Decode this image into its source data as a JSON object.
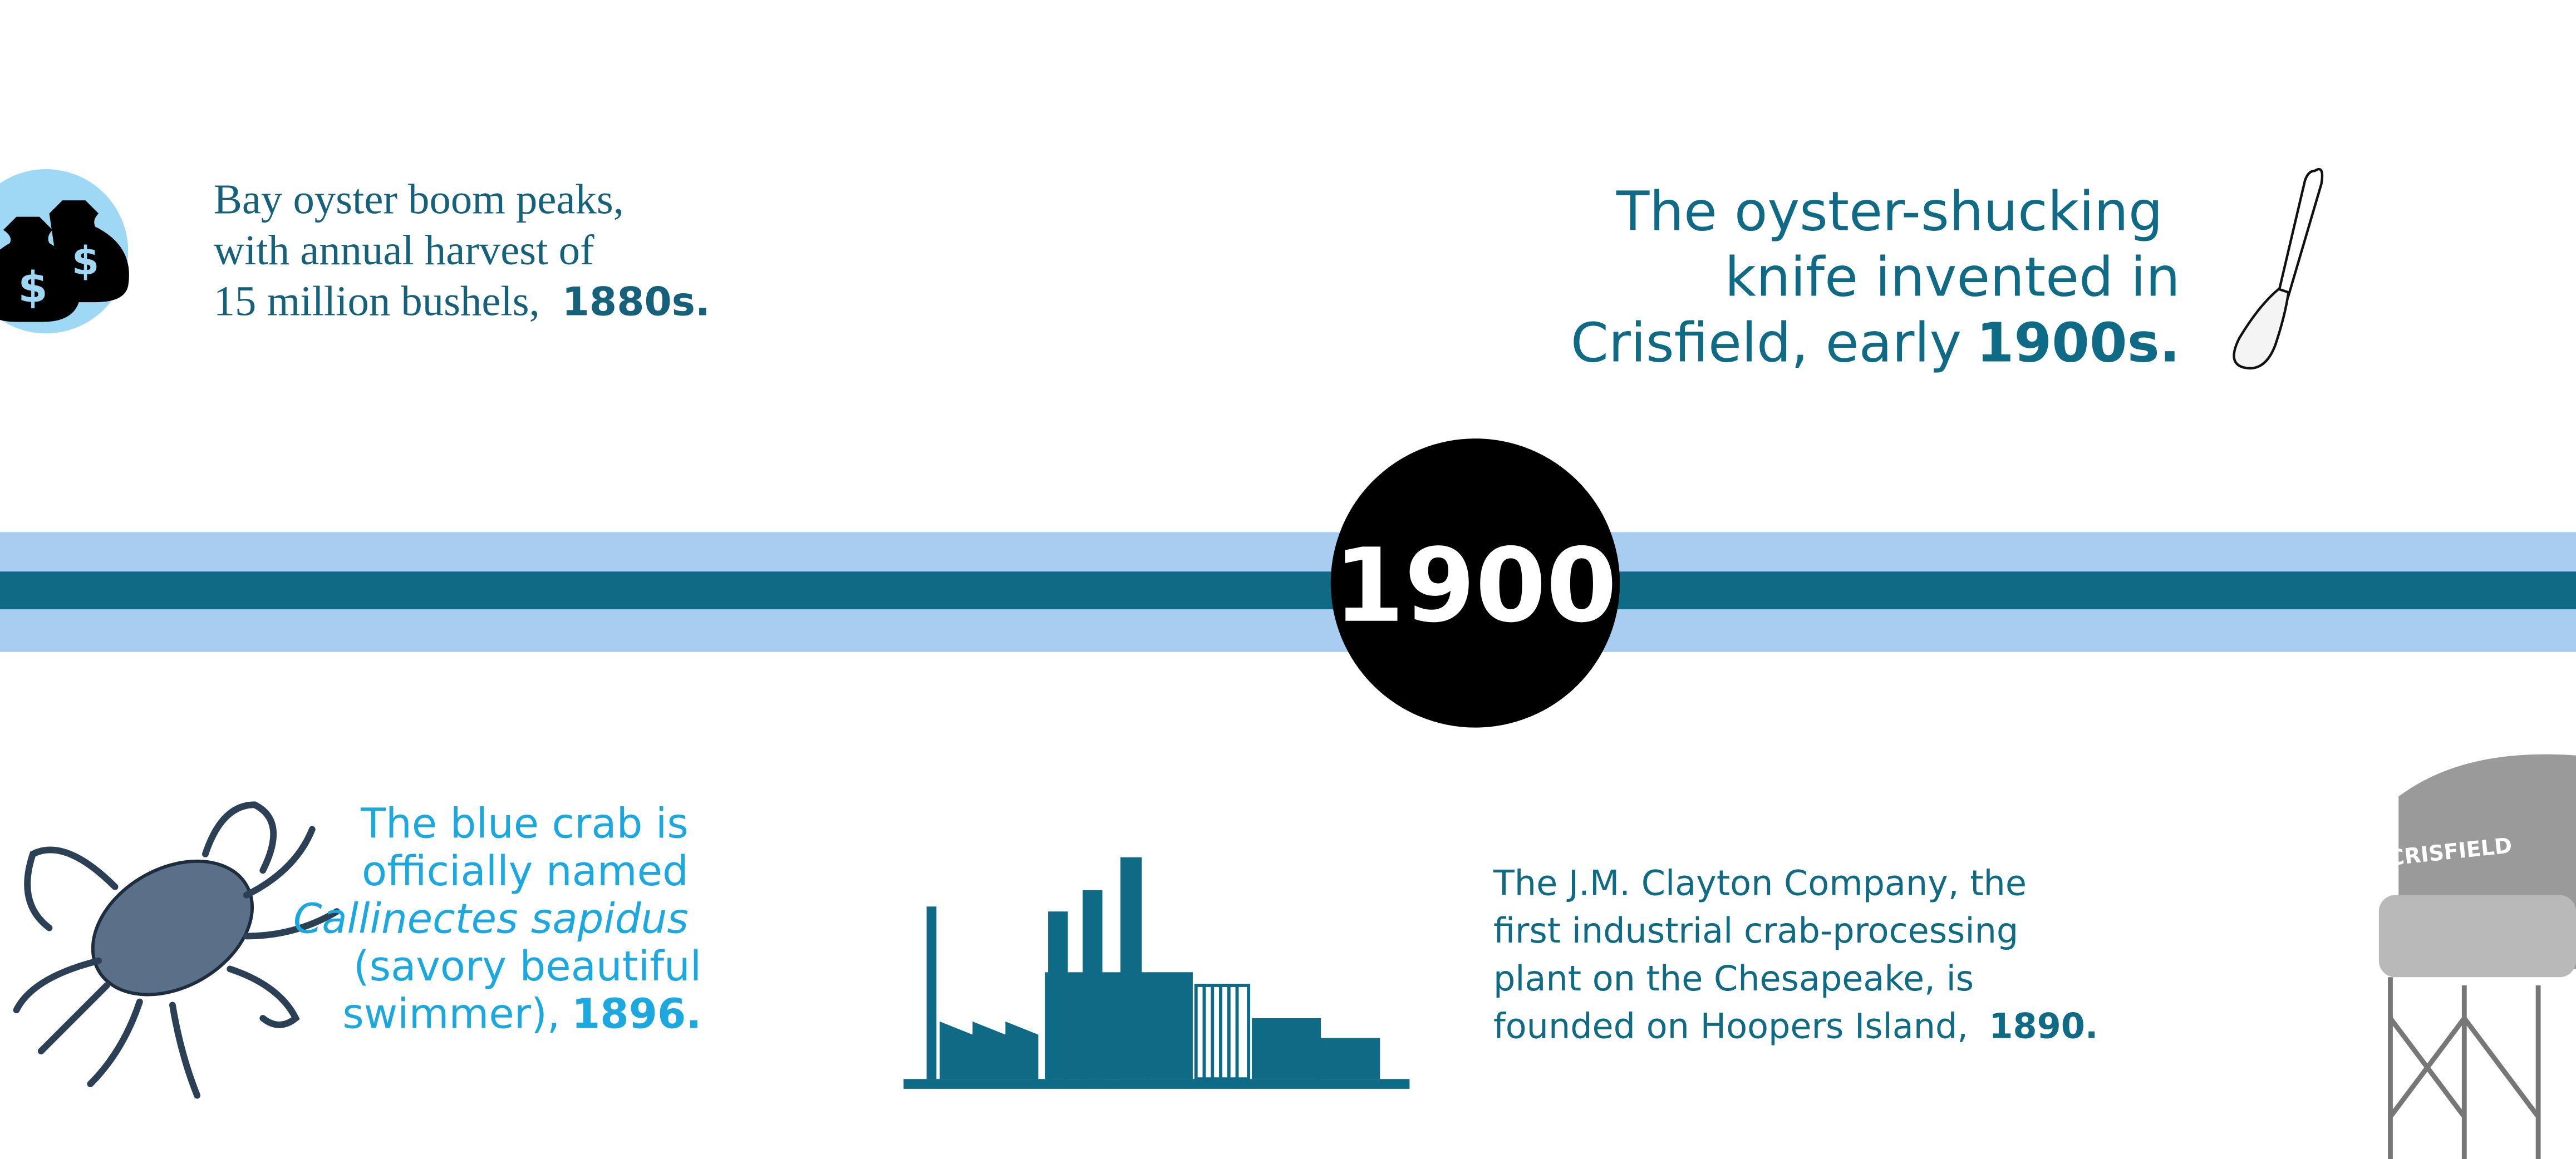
{
  "center_year": "1900",
  "events": [
    {
      "lines": [
        "Bay oyster boom peaks,",
        "with annual harvest of",
        "15 million bushels,"
      ],
      "date": "1880s."
    },
    {
      "lines": [
        "The oyster-shucking",
        "knife invented in",
        "Crisfield, early"
      ],
      "date": "1900s."
    },
    {
      "lines": [
        "The blue crab is",
        "officially named",
        "Callinectes sapidus",
        "(savory beautiful",
        "swimmer),"
      ],
      "date": "1896."
    },
    {
      "lines": [
        "The J.M. Clayton Company, the",
        "first industrial crab-processing",
        "plant on the Chesapeake, is",
        "founded on Hoopers Island,"
      ],
      "date": "1890."
    }
  ],
  "tower_label": "CRISFIELD"
}
